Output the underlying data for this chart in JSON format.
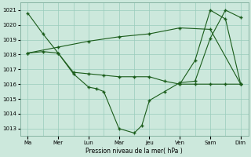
{
  "xlabel": "Pression niveau de la mer( hPa )",
  "bg_color": "#cce8dc",
  "grid_color": "#99ccbb",
  "line_color": "#1a5c1a",
  "ylim": [
    1012.5,
    1021.5
  ],
  "yticks": [
    1013,
    1014,
    1015,
    1016,
    1017,
    1018,
    1019,
    1020,
    1021
  ],
  "day_labels": [
    "Ma",
    "Mer",
    "Lun",
    "Mar",
    "Jeu",
    "Ven",
    "Sam",
    "Dim"
  ],
  "day_positions": [
    0,
    2,
    4,
    6,
    8,
    10,
    12,
    14
  ],
  "xlim": [
    -0.5,
    14.5
  ],
  "line1_x": [
    0,
    1,
    2,
    3,
    4,
    4.5,
    5,
    6,
    7,
    7.5,
    8,
    9,
    10,
    11,
    12,
    13,
    14
  ],
  "line1_y": [
    1020.8,
    1019.4,
    1018.1,
    1016.7,
    1015.8,
    1015.7,
    1015.5,
    1013.0,
    1012.7,
    1013.2,
    1014.9,
    1015.5,
    1016.1,
    1016.2,
    1019.1,
    1021.0,
    1020.5
  ],
  "line2_x": [
    0,
    1,
    2,
    3,
    4,
    5,
    6,
    7,
    8,
    9,
    10,
    11,
    12,
    13,
    14
  ],
  "line2_y": [
    1018.1,
    1018.2,
    1018.1,
    1016.8,
    1016.7,
    1016.6,
    1016.5,
    1016.5,
    1016.5,
    1016.2,
    1016.0,
    1016.0,
    1016.0,
    1016.0,
    1016.0
  ],
  "line3_x": [
    0,
    2,
    4,
    6,
    8,
    10,
    12,
    14
  ],
  "line3_y": [
    1018.1,
    1018.5,
    1018.9,
    1019.2,
    1019.4,
    1019.8,
    1019.7,
    1016.0
  ],
  "line4_x": [
    10,
    11,
    12,
    13,
    14
  ],
  "line4_y": [
    1016.0,
    1017.6,
    1021.0,
    1020.4,
    1016.0
  ]
}
